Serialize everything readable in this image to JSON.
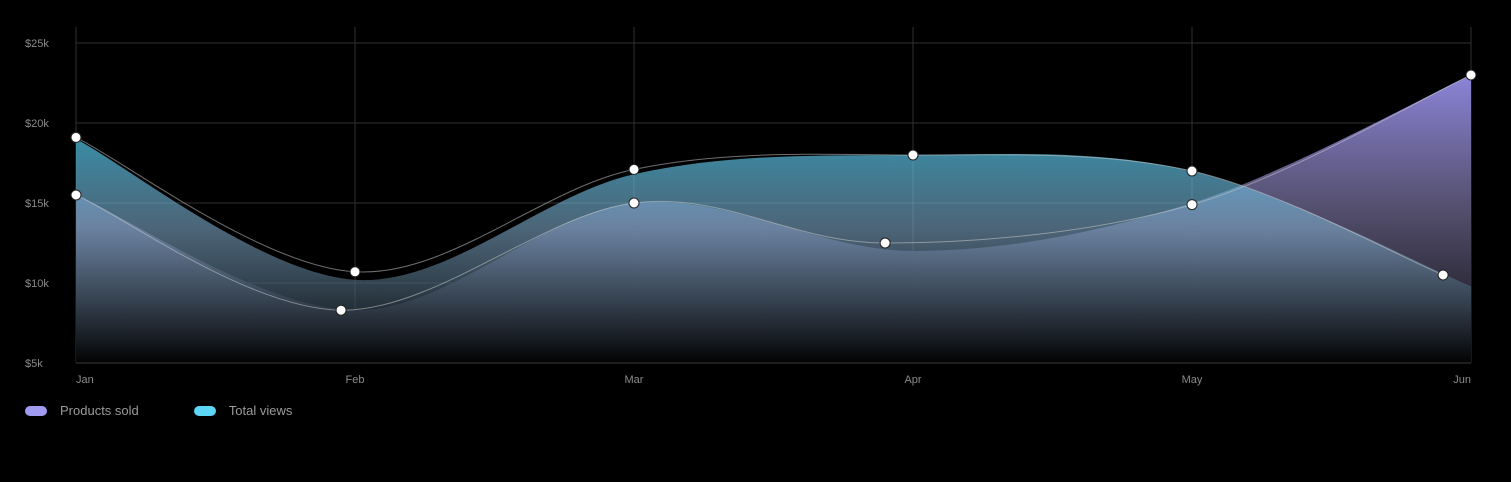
{
  "chart_data": {
    "type": "area",
    "categories": [
      "Jan",
      "Feb",
      "Mar",
      "Apr",
      "May",
      "Jun"
    ],
    "y_ticks": [
      "$5k",
      "$10k",
      "$15k",
      "$20k",
      "$25k"
    ],
    "ylim": [
      5000,
      26000
    ],
    "grid": true,
    "legend_position": "bottom-left",
    "series": [
      {
        "name": "Products sold",
        "color": "#a29bf2",
        "area_values": [
          15500,
          8300,
          15000,
          12000,
          15000,
          23000
        ],
        "markers": [
          {
            "x": 0,
            "y": 15500
          },
          {
            "x": 0.95,
            "y": 8300
          },
          {
            "x": 2,
            "y": 15000
          },
          {
            "x": 2.9,
            "y": 12500
          },
          {
            "x": 4,
            "y": 14900
          },
          {
            "x": 5,
            "y": 23000
          }
        ]
      },
      {
        "name": "Total views",
        "color": "#5dd6f5",
        "area_values": [
          19000,
          10200,
          16800,
          18000,
          17000,
          9800
        ],
        "markers": [
          {
            "x": 0,
            "y": 19100
          },
          {
            "x": 1,
            "y": 10700
          },
          {
            "x": 2,
            "y": 17100
          },
          {
            "x": 3,
            "y": 18000
          },
          {
            "x": 4,
            "y": 17000
          },
          {
            "x": 4.9,
            "y": 10500
          }
        ]
      }
    ]
  }
}
